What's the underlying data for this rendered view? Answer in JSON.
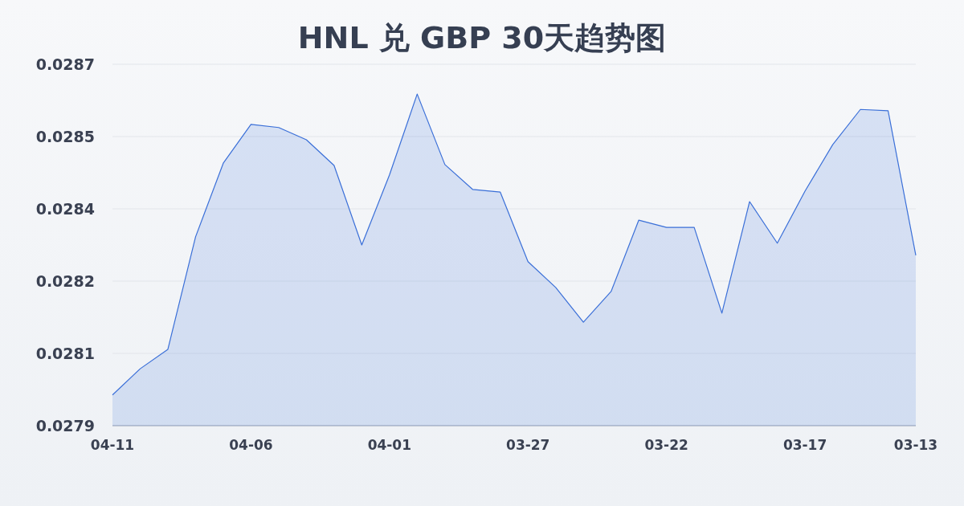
{
  "chart_data": {
    "type": "area",
    "title": "HNL 兑 GBP 30天趋势图",
    "categories": [
      "04-11",
      null,
      null,
      null,
      null,
      "04-06",
      null,
      null,
      null,
      null,
      "04-01",
      null,
      null,
      null,
      null,
      "03-27",
      null,
      null,
      null,
      null,
      "03-22",
      null,
      null,
      null,
      null,
      "03-17",
      null,
      null,
      null,
      "03-13"
    ],
    "values": [
      0.027968,
      0.028026,
      0.028069,
      0.028318,
      0.028481,
      0.028567,
      0.02856,
      0.028533,
      0.028476,
      0.0283,
      0.028455,
      0.028634,
      0.028478,
      0.028423,
      0.028417,
      0.028263,
      0.028206,
      0.028129,
      0.028197,
      0.028355,
      0.028339,
      0.028339,
      0.028149,
      0.028396,
      0.028304,
      0.028419,
      0.028522,
      0.0286,
      0.028597,
      0.028277
    ],
    "color": "#3a6fd8",
    "ylim": [
      0.0279,
      0.0287
    ],
    "yticks": [
      {
        "value": 0.0279,
        "label": "0.0279"
      },
      {
        "value": 0.02806,
        "label": "0.0281"
      },
      {
        "value": 0.02822,
        "label": "0.0282"
      },
      {
        "value": 0.02838,
        "label": "0.0284"
      },
      {
        "value": 0.02854,
        "label": "0.0285"
      },
      {
        "value": 0.0287,
        "label": "0.0287"
      }
    ],
    "grid": "y"
  }
}
